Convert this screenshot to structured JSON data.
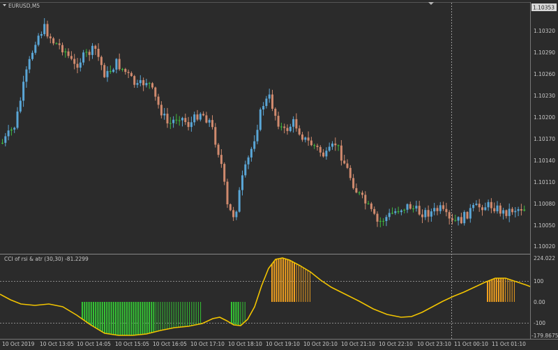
{
  "symbol_title": "EURUSD,M5",
  "current_price": "1.10353",
  "price_axis": [
    "1.10320",
    "1.10290",
    "1.10260",
    "1.10230",
    "1.10200",
    "1.10170",
    "1.10140",
    "1.10110",
    "1.10080",
    "1.10050",
    "1.10020"
  ],
  "indicator": {
    "title": "CCI of rsi & atr (30,30) -81.2299",
    "max_label": "224.022",
    "min_label": "-179.8675",
    "levels": [
      "100",
      "0.00",
      "-100"
    ]
  },
  "time_axis": [
    "10 Oct 2019",
    "10 Oct 13:05",
    "10 Oct 14:05",
    "10 Oct 15:05",
    "10 Oct 16:05",
    "10 Oct 17:10",
    "10 Oct 18:10",
    "10 Oct 19:10",
    "10 Oct 20:10",
    "10 Oct 21:10",
    "10 Oct 22:10",
    "10 Oct 23:10",
    "11 Oct 00:10",
    "11 Oct 01:10"
  ],
  "colors": {
    "background": "#2b2b2b",
    "bull_candle": "#5aa6d6",
    "bear_candle": "#d08a6e",
    "neutral_candle": "#3fb93f",
    "cci_line": "#f2c400",
    "hist_green": "#34c534",
    "hist_orange": "#f0a020",
    "grid_dotted": "#8a8a8a",
    "axis_text": "#c8c8c8",
    "price_tag_bg": "#d9d9d9"
  },
  "icons": [
    "dropdown-triangle-icon",
    "shift-marker-icon"
  ]
}
